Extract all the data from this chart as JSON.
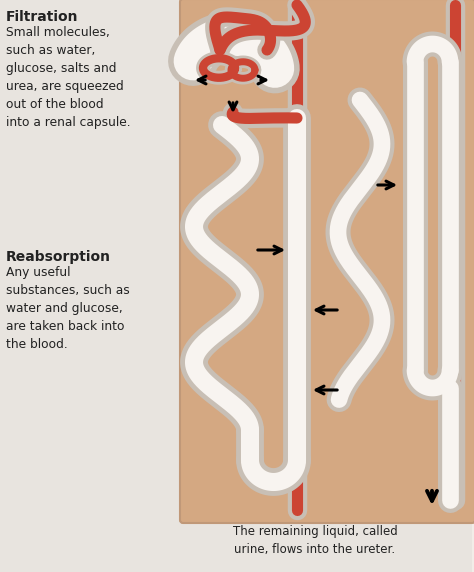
{
  "background_color": "#f2ede8",
  "diagram_bg": "#d4a882",
  "text_left_bg": "#e8e4df",
  "tube_white_fill": "#f8f4f0",
  "tube_white_edge": "#c8bfb5",
  "tube_red_fill": "#cc4433",
  "arrow_color": "#1a1a1a",
  "text_color": "#222222",
  "title1": "Filtration",
  "body1": "Small molecules,\nsuch as water,\nglucose, salts and\nurea, are squeezed\nout of the blood\ninto a renal capsule.",
  "title2": "Reabsorption",
  "body2": "Any useful\nsubstances, such as\nwater and glucose,\nare taken back into\nthe blood.",
  "caption": "The remaining liquid, called\nurine, flows into the ureter.",
  "fig_width": 4.74,
  "fig_height": 5.72,
  "dpi": 100
}
